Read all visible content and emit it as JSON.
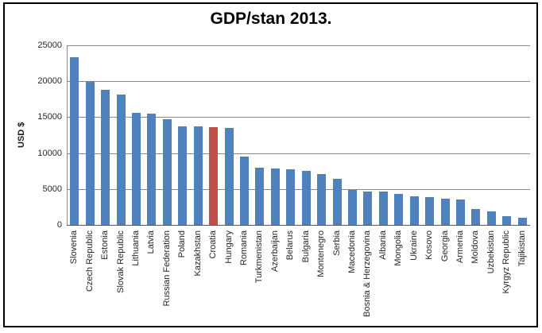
{
  "window": {
    "background": "#FFFFFF",
    "frame_color": "#000000"
  },
  "chart_data": {
    "type": "bar",
    "title": "GDP/stan 2013.",
    "xlabel": "",
    "ylabel": "USD $",
    "ylim": [
      0,
      25000
    ],
    "yticks": [
      0,
      5000,
      10000,
      15000,
      20000,
      25000
    ],
    "grid": true,
    "legend": false,
    "categories": [
      "Slovenia",
      "Czech Republic",
      "Estonia",
      "Slovak Republic",
      "Lithuania",
      "Latvia",
      "Russian Federation",
      "Poland",
      "Kazakhstan",
      "Croatia",
      "Hungary",
      "Romania",
      "Turkmenistan",
      "Azerbaijan",
      "Belarus",
      "Bulgaria",
      "Montenegro",
      "Serbia",
      "Macedonia",
      "Bosnia & Herzegovina",
      "Albania",
      "Mongolia",
      "Ukraine",
      "Kosovo",
      "Georgia",
      "Armenia",
      "Moldova",
      "Uzbekistan",
      "Kyrgyz Republic",
      "Tajikistan"
    ],
    "values": [
      23300,
      19900,
      18800,
      18100,
      15600,
      15450,
      14700,
      13700,
      13700,
      13600,
      13500,
      9500,
      8000,
      7900,
      7700,
      7500,
      7100,
      6400,
      4900,
      4700,
      4650,
      4300,
      4000,
      3900,
      3700,
      3500,
      2200,
      1850,
      1250,
      1050
    ],
    "highlight_category": "Croatia",
    "colors": {
      "bar": "#4F81BD",
      "highlight": "#C0504D",
      "gridline": "#868686",
      "axis_line": "#595959",
      "text": "#262626",
      "title": "#000000"
    }
  }
}
